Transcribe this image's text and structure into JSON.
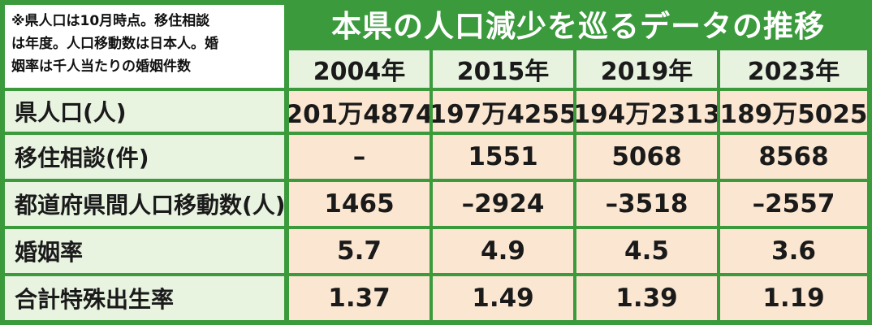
{
  "note": "※県人口は10月時点。移住相談\nは年度。人口移動数は日本人。婚\n姻率は千人当たりの婚姻件数",
  "title": "本県の人口減少を巡るデータの推移",
  "years": [
    "2004年",
    "2015年",
    "2019年",
    "2023年"
  ],
  "rows": [
    {
      "label": "県人口(人)",
      "values": [
        "201万4874",
        "197万4255",
        "194万2313",
        "189万5025"
      ]
    },
    {
      "label": "移住相談(件)",
      "values": [
        "–",
        "1551",
        "5068",
        "8568"
      ]
    },
    {
      "label": "都道府県間人口移動数(人)",
      "values": [
        "1465",
        "–2924",
        "–3518",
        "–2557"
      ]
    },
    {
      "label": "婚姻率",
      "values": [
        "5.7",
        "4.9",
        "4.5",
        "3.6"
      ]
    },
    {
      "label": "合計特殊出生率",
      "values": [
        "1.37",
        "1.49",
        "1.39",
        "1.19"
      ]
    }
  ],
  "colors": {
    "frame": "#3a9a3c",
    "header_bg": "#e7f2df",
    "label_bg": "#e8f3e0",
    "value_bg": "#fbe7d1"
  }
}
